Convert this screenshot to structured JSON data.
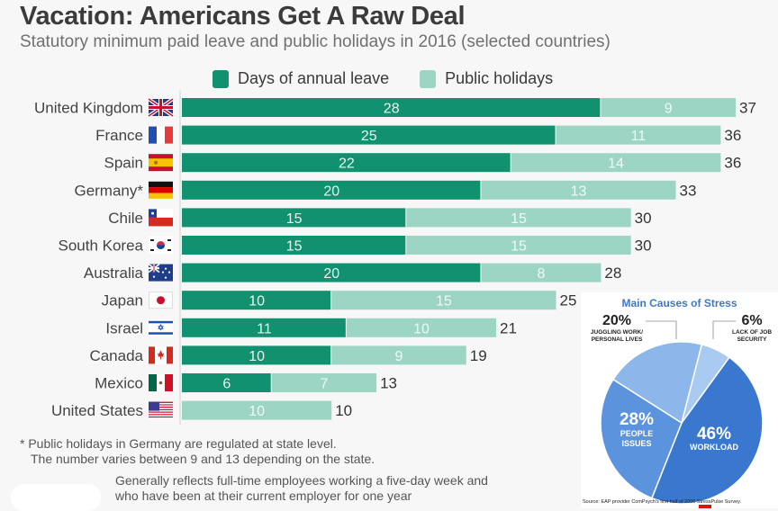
{
  "header": {
    "title": "Vacation: Americans Get A Raw Deal",
    "subtitle": "Statutory minimum paid leave and public holidays in 2016 (selected countries)"
  },
  "colors": {
    "annual_leave": "#11916f",
    "public_holidays": "#9dd5c5",
    "pie_dark": "#3a78cf",
    "pie_mid": "#5b93dc",
    "pie_light": "#8db7eb",
    "pie_lightest": "#a9cbf2",
    "pie_title": "#3f78c8"
  },
  "chart_data": [
    {
      "type": "bar",
      "orientation": "horizontal",
      "stacked": true,
      "title": "Vacation: Americans Get A Raw Deal",
      "subtitle": "Statutory minimum paid leave and public holidays in 2016 (selected countries)",
      "categories": [
        "United Kingdom",
        "France",
        "Spain",
        "Germany*",
        "Chile",
        "South Korea",
        "Australia",
        "Japan",
        "Israel",
        "Canada",
        "Mexico",
        "United States"
      ],
      "flags": [
        "uk-flag-icon",
        "france-flag-icon",
        "spain-flag-icon",
        "germany-flag-icon",
        "chile-flag-icon",
        "south-korea-flag-icon",
        "australia-flag-icon",
        "japan-flag-icon",
        "israel-flag-icon",
        "canada-flag-icon",
        "mexico-flag-icon",
        "usa-flag-icon"
      ],
      "series": [
        {
          "name": "Days of annual leave",
          "values": [
            28,
            25,
            22,
            20,
            15,
            15,
            20,
            10,
            11,
            10,
            6,
            0
          ]
        },
        {
          "name": "Public holidays",
          "values": [
            9,
            11,
            14,
            13,
            15,
            15,
            8,
            15,
            10,
            9,
            7,
            10
          ]
        }
      ],
      "totals": [
        37,
        36,
        36,
        33,
        30,
        30,
        28,
        25,
        21,
        19,
        13,
        10
      ],
      "xlim": [
        0,
        37
      ],
      "legend_position": "top",
      "grid": false,
      "footnotes": [
        "* Public holidays in Germany are regulated at state level.",
        "The number varies between 9 and 13 depending on the state."
      ],
      "note": [
        "Generally reflects full-time employees working a five-day week and",
        "who have been at their current employer for one year"
      ]
    },
    {
      "type": "pie",
      "title": "Main Causes of Stress",
      "slices": [
        {
          "label": "Workload",
          "value": 46,
          "display": "46%"
        },
        {
          "label": "People issues",
          "value": 28,
          "display": "28%"
        },
        {
          "label": "Juggling work/ personal lives",
          "value": 20,
          "display": "20%"
        },
        {
          "label": "Lack of job security",
          "value": 6,
          "display": "6%"
        }
      ],
      "source": "Source: EAP provider ComPsych's first half of 2006 StressPulse Survey."
    }
  ],
  "inset_labels": {
    "workload_pct": "46%",
    "workload": "WORKLOAD",
    "people_pct": "28%",
    "people1": "PEOPLE",
    "people2": "ISSUES",
    "juggling_pct": "20%",
    "juggling1": "JUGGLING WORK/",
    "juggling2": "PERSONAL LIVES",
    "security_pct": "6%",
    "security1": "LACK OF JOB",
    "security2": "SECURITY"
  }
}
